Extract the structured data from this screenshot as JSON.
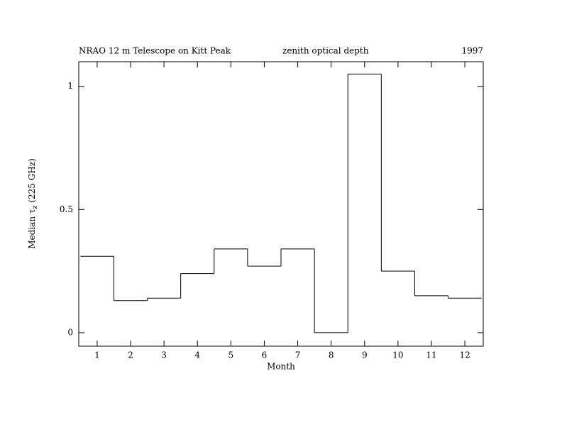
{
  "chart_data": {
    "type": "step",
    "title": "NRAO 12 m Telescope on Kitt Peak",
    "subtitle": "zenith optical depth",
    "year": "1997",
    "xlabel": "Month",
    "ylabel": {
      "main": "Median τ",
      "sub": "z",
      "rest": "(225 GHz)"
    },
    "x": [
      1,
      2,
      3,
      4,
      5,
      6,
      7,
      8,
      9,
      10,
      11,
      12
    ],
    "values": [
      0.31,
      0.13,
      0.14,
      0.24,
      0.34,
      0.27,
      0.34,
      0,
      1.05,
      0.25,
      0.15,
      0.14
    ],
    "color": "#000000",
    "xlim": [
      0.45,
      12.55
    ],
    "ylim": [
      -0.055,
      1.1
    ],
    "xticks": [
      1,
      2,
      3,
      4,
      5,
      6,
      7,
      8,
      9,
      10,
      11,
      12
    ],
    "yticks": [
      0,
      0.5,
      1
    ],
    "grid": false
  }
}
